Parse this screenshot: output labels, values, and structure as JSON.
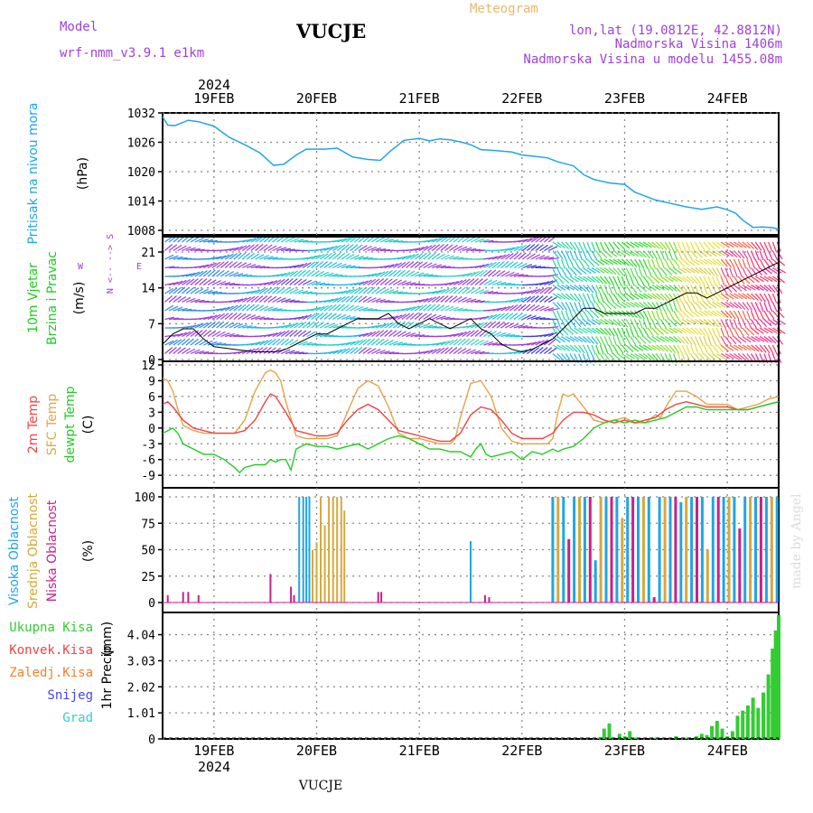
{
  "header": {
    "model_label": "Model",
    "model_name": "wrf-nmm_v3.9.1 e1km",
    "station": "VUCJE",
    "meteogram_label": "Meteogram",
    "lonlat": "lon,lat (19.0812E, 42.8812N)",
    "altitude": "Nadmorska Visina 1406m",
    "model_altitude": "Nadmorska Visina u modelu 1455.08m",
    "footer_station": "VUCJE",
    "watermark": "made by Angel",
    "year_label": "2024"
  },
  "colors": {
    "pressure": "#1fa6e6",
    "temp2m": "#ee4444",
    "sfc": "#e3a548",
    "dew": "#22cc22",
    "high_cloud": "#1fa6e6",
    "mid_cloud": "#d6a83c",
    "low_cloud": "#cc1f8a",
    "total_precip": "#33cc33",
    "convective": "#ee4444",
    "freezing": "#f07f2c",
    "snow": "#4444ee",
    "hail": "#33cccc",
    "purple": "#a040d8",
    "gold": "#e6b96a"
  },
  "chart_data": [
    {
      "type": "line",
      "id": "pressure",
      "ylabel_name": "Pritisak na nivou mora",
      "ylabel_unit": "(hPa)",
      "ylim": [
        1008,
        1032
      ],
      "ytick_labels": [
        "1032",
        "1026",
        "1020",
        "1014",
        "1008"
      ],
      "xtick_labels": [
        "19FEB",
        "20FEB",
        "21FEB",
        "22FEB",
        "23FEB",
        "24FEB"
      ],
      "x_range_days": [
        18.5,
        24.5
      ],
      "series": [
        {
          "x": [
            18.5,
            18.55,
            18.62,
            18.75,
            18.85,
            19.0,
            19.15,
            19.3,
            19.45,
            19.58,
            19.68,
            19.8,
            19.9,
            20.0,
            20.08,
            20.2,
            20.35,
            20.5,
            20.62,
            20.72,
            20.85,
            21.0,
            21.1,
            21.2,
            21.3,
            21.4,
            21.5,
            21.6,
            21.75,
            21.9,
            22.0,
            22.1,
            22.25,
            22.35,
            22.5,
            22.6,
            22.7,
            22.85,
            23.0,
            23.1,
            23.2,
            23.3,
            23.45,
            23.6,
            23.75,
            23.9,
            24.0,
            24.08,
            24.15,
            24.25,
            24.35,
            24.45,
            24.5
          ],
          "y": [
            1031.2,
            1029.5,
            1029.4,
            1030.5,
            1030.2,
            1029.3,
            1027.0,
            1025.5,
            1023.8,
            1021.3,
            1021.5,
            1023.4,
            1024.6,
            1024.6,
            1024.6,
            1024.8,
            1023.0,
            1022.5,
            1022.3,
            1024.2,
            1026.4,
            1026.8,
            1026.3,
            1026.7,
            1026.5,
            1026.1,
            1025.5,
            1024.5,
            1024.3,
            1024.0,
            1023.4,
            1023.2,
            1022.8,
            1022.0,
            1021.2,
            1019.4,
            1018.4,
            1017.7,
            1017.4,
            1015.8,
            1015.0,
            1014.2,
            1013.5,
            1012.8,
            1012.3,
            1012.8,
            1012.2,
            1011.5,
            1010.1,
            1008.6,
            1008.7,
            1008.5,
            1008.2
          ]
        }
      ]
    },
    {
      "type": "line",
      "id": "wind",
      "ylabel_name": "10m Vjetar",
      "ylabel_name2": "Brzina i Pravac",
      "ylabel_unit": "(m/s)",
      "compass_label": "N <-- --> S",
      "compass_w": "W",
      "compass_e": "E",
      "ylim": [
        0,
        24
      ],
      "ytick_labels": [
        "21",
        "14",
        "7",
        "0"
      ],
      "series": [
        {
          "name": "speed",
          "x": [
            18.5,
            18.6,
            18.7,
            18.8,
            18.9,
            19.0,
            19.2,
            19.4,
            19.6,
            19.7,
            19.8,
            19.9,
            20.0,
            20.1,
            20.2,
            20.3,
            20.4,
            20.5,
            20.6,
            20.7,
            20.8,
            20.9,
            21.0,
            21.1,
            21.2,
            21.3,
            21.4,
            21.5,
            21.6,
            21.7,
            21.8,
            21.9,
            22.0,
            22.1,
            22.2,
            22.3,
            22.4,
            22.5,
            22.6,
            22.7,
            22.8,
            22.9,
            23.0,
            23.1,
            23.2,
            23.3,
            23.4,
            23.5,
            23.6,
            23.7,
            23.8,
            23.9,
            24.0,
            24.1,
            24.2,
            24.3,
            24.4,
            24.5
          ],
          "y": [
            3,
            5,
            6,
            6,
            4,
            2.5,
            2,
            1.5,
            1.5,
            2,
            3,
            4,
            5,
            5,
            6,
            7,
            8,
            8,
            8,
            9,
            7,
            6,
            7,
            8,
            7,
            6,
            7,
            8,
            6,
            5,
            3,
            2,
            1.5,
            2,
            3,
            4,
            6,
            8,
            10,
            10,
            9,
            9,
            9,
            9,
            10,
            10,
            11,
            12,
            13,
            13,
            12,
            13,
            14,
            15,
            16,
            17,
            18,
            19
          ]
        }
      ]
    },
    {
      "type": "line",
      "id": "temperature",
      "ylabel_name": "2m Temp",
      "ylabel_name2": "SFC Temp",
      "ylabel_name3": "dewpt Temp",
      "ylabel_unit": "(C)",
      "ylim": [
        -10,
        12
      ],
      "ytick_labels": [
        "12",
        "9",
        "6",
        "3",
        "0",
        "-3",
        "-6",
        "-9"
      ],
      "series": [
        {
          "name": "SFC Temp",
          "x": [
            18.5,
            18.55,
            18.6,
            18.65,
            18.7,
            18.8,
            18.9,
            19.0,
            19.1,
            19.2,
            19.3,
            19.4,
            19.5,
            19.55,
            19.6,
            19.65,
            19.7,
            19.8,
            19.9,
            20.0,
            20.1,
            20.2,
            20.3,
            20.4,
            20.5,
            20.6,
            20.7,
            20.8,
            20.9,
            21.0,
            21.1,
            21.2,
            21.3,
            21.35,
            21.4,
            21.5,
            21.6,
            21.7,
            21.8,
            21.9,
            22.0,
            22.1,
            22.2,
            22.25,
            22.3,
            22.35,
            22.4,
            22.45,
            22.5,
            22.6,
            22.7,
            22.8,
            22.9,
            23.0,
            23.1,
            23.2,
            23.3,
            23.35,
            23.4,
            23.45,
            23.5,
            23.6,
            23.7,
            23.8,
            23.9,
            24.0,
            24.1,
            24.2,
            24.3,
            24.4,
            24.5
          ],
          "y": [
            9.5,
            9,
            7,
            3.5,
            0.5,
            -0.5,
            -1,
            -1,
            -1,
            -1,
            1.5,
            7,
            10.5,
            11,
            10.5,
            9,
            5,
            -1.5,
            -2,
            -2,
            -2,
            -1.5,
            3,
            7.5,
            9,
            8,
            4,
            -1,
            -2,
            -2,
            -2.5,
            -3,
            -3,
            -2,
            2,
            8.5,
            9,
            6,
            0,
            -2.5,
            -3,
            -3,
            -3,
            -3,
            -2,
            3,
            6.5,
            6,
            6.5,
            4,
            1.5,
            1,
            1.5,
            2,
            1,
            1,
            2.5,
            2,
            4,
            5.5,
            7,
            7,
            6,
            4.5,
            4.5,
            4.5,
            3.5,
            4,
            4.5,
            5.5,
            6
          ]
        },
        {
          "name": "2m Temp",
          "x": [
            18.5,
            18.55,
            18.6,
            18.7,
            18.8,
            18.9,
            19.0,
            19.1,
            19.2,
            19.3,
            19.4,
            19.5,
            19.55,
            19.6,
            19.7,
            19.8,
            19.9,
            20.0,
            20.1,
            20.2,
            20.3,
            20.4,
            20.5,
            20.6,
            20.7,
            20.8,
            20.9,
            21.0,
            21.1,
            21.2,
            21.3,
            21.4,
            21.5,
            21.6,
            21.7,
            21.8,
            21.9,
            22.0,
            22.1,
            22.2,
            22.3,
            22.4,
            22.5,
            22.6,
            22.7,
            22.8,
            22.9,
            23.0,
            23.1,
            23.2,
            23.3,
            23.4,
            23.5,
            23.6,
            23.7,
            23.8,
            23.9,
            24.0,
            24.1,
            24.2,
            24.3,
            24.4,
            24.5
          ],
          "y": [
            4.5,
            5,
            4,
            1.5,
            0,
            -0.5,
            -1,
            -1,
            -1,
            -0.5,
            1.5,
            5,
            6.5,
            6,
            3,
            -0.5,
            -1,
            -1.5,
            -1.5,
            -1,
            1.5,
            3.5,
            4.5,
            3.5,
            1.5,
            -0.5,
            -1,
            -1.5,
            -2,
            -2.5,
            -2.5,
            -1,
            2.5,
            4,
            3.5,
            1.5,
            -1,
            -2,
            -2,
            -2,
            -1,
            1.5,
            3,
            3,
            2.5,
            1.5,
            1,
            1.5,
            1,
            1.5,
            2,
            3.5,
            4.5,
            5,
            4.5,
            4,
            4,
            4,
            3.5,
            3.5,
            4,
            4.5,
            5
          ]
        },
        {
          "name": "dewpt Temp",
          "x": [
            18.5,
            18.55,
            18.6,
            18.65,
            18.7,
            18.8,
            18.9,
            19.0,
            19.1,
            19.2,
            19.25,
            19.3,
            19.4,
            19.5,
            19.55,
            19.6,
            19.65,
            19.7,
            19.75,
            19.8,
            19.9,
            20.0,
            20.1,
            20.2,
            20.3,
            20.4,
            20.5,
            20.6,
            20.7,
            20.8,
            20.9,
            21.0,
            21.1,
            21.2,
            21.3,
            21.4,
            21.45,
            21.5,
            21.55,
            21.6,
            21.65,
            21.7,
            21.8,
            21.9,
            22.0,
            22.1,
            22.2,
            22.3,
            22.35,
            22.4,
            22.5,
            22.6,
            22.7,
            22.8,
            22.9,
            23.0,
            23.1,
            23.2,
            23.3,
            23.4,
            23.5,
            23.6,
            23.7,
            23.8,
            23.9,
            24.0,
            24.1,
            24.2,
            24.3,
            24.4,
            24.5
          ],
          "y": [
            -1,
            -0.5,
            0,
            -1,
            -3,
            -4,
            -5,
            -5,
            -6,
            -7.5,
            -8.5,
            -7.5,
            -7,
            -7,
            -6,
            -6.5,
            -6,
            -6,
            -8,
            -4,
            -3,
            -3.5,
            -3.5,
            -4,
            -3.5,
            -3,
            -4,
            -3,
            -2,
            -1.5,
            -2,
            -3,
            -4,
            -4,
            -4.5,
            -4.5,
            -5,
            -5.5,
            -4,
            -3,
            -5,
            -5.5,
            -5,
            -4.5,
            -6,
            -4.5,
            -5,
            -4,
            -4.5,
            -4,
            -3.5,
            -2,
            0,
            1,
            1.5,
            1,
            1.5,
            1,
            1.5,
            2,
            3,
            4,
            4,
            3.5,
            3.5,
            3.5,
            3.5,
            3.5,
            4,
            4.5,
            5
          ]
        }
      ]
    },
    {
      "type": "bar",
      "id": "clouds",
      "ylabel_name": "Visoka Oblacnost",
      "ylabel_name2": "Srednja Oblacnost",
      "ylabel_name3": "Niska Oblacnost",
      "ylabel_unit": "(%)",
      "ylim": [
        0,
        100
      ],
      "ytick_labels": [
        "100",
        "75",
        "50",
        "25",
        "0"
      ],
      "bar_spacing_days": 0.0417,
      "series": [
        {
          "name": "Niska Oblacnost",
          "x": [
            18.55,
            18.7,
            18.75,
            18.85,
            19.55,
            19.75,
            19.78,
            20.6,
            20.63,
            21.64,
            21.68
          ],
          "values": [
            7,
            10,
            10,
            7,
            27,
            15,
            7,
            10,
            10,
            7,
            5
          ]
        },
        {
          "name": "Visoka Oblacnost",
          "x": [
            19.83,
            19.87,
            19.9,
            19.93,
            21.5
          ],
          "values": [
            100,
            100,
            100,
            100,
            58
          ]
        },
        {
          "name": "Srednja Oblacnost",
          "x": [
            19.96,
            20.0,
            20.04,
            20.08,
            20.12,
            20.16,
            20.2,
            20.24,
            20.27
          ],
          "values": [
            50,
            57,
            100,
            73,
            100,
            100,
            100,
            100,
            87
          ]
        }
      ],
      "dense_start_day": 22.3,
      "dense_end_day": 24.5,
      "dense_pattern": [
        100,
        100,
        100,
        60,
        100,
        100,
        100,
        100,
        40,
        100,
        100,
        100,
        100,
        80,
        100,
        100,
        100,
        100,
        100,
        5,
        100,
        100,
        100,
        100,
        95,
        100,
        100,
        100,
        100,
        50,
        100,
        100,
        100,
        100,
        100,
        70,
        100,
        100,
        100,
        100
      ]
    },
    {
      "type": "bar",
      "id": "precip",
      "ylabel_name": "1hr Precip",
      "ylabel_unit": "(mm)",
      "legend": [
        "Ukupna Kisa",
        "Konvek.Kisa",
        "Zaledj.Kisa",
        "Snijeg",
        "Grad"
      ],
      "ylim": [
        0,
        5
      ],
      "ytick_labels": [
        "4.04",
        "3.03",
        "2.02",
        "1.01",
        "0"
      ],
      "xtick_labels": [
        "19FEB",
        "20FEB",
        "21FEB",
        "22FEB",
        "23FEB",
        "24FEB"
      ],
      "x": [
        22.75,
        22.8,
        22.85,
        22.95,
        23.0,
        23.05,
        23.1,
        23.3,
        23.5,
        23.6,
        23.7,
        23.75,
        23.8,
        23.85,
        23.9,
        23.95,
        24.0,
        24.05,
        24.1,
        24.15,
        24.2,
        24.25,
        24.3,
        24.35,
        24.4,
        24.44,
        24.47,
        24.5
      ],
      "values": [
        0.05,
        0.4,
        0.6,
        0.2,
        0.1,
        0.3,
        0.05,
        0.05,
        0.1,
        0.05,
        0.1,
        0.2,
        0.15,
        0.5,
        0.7,
        0.4,
        0.1,
        0.3,
        0.9,
        1.1,
        1.3,
        1.6,
        1.2,
        1.8,
        2.5,
        3.5,
        4.2,
        4.8
      ]
    }
  ]
}
